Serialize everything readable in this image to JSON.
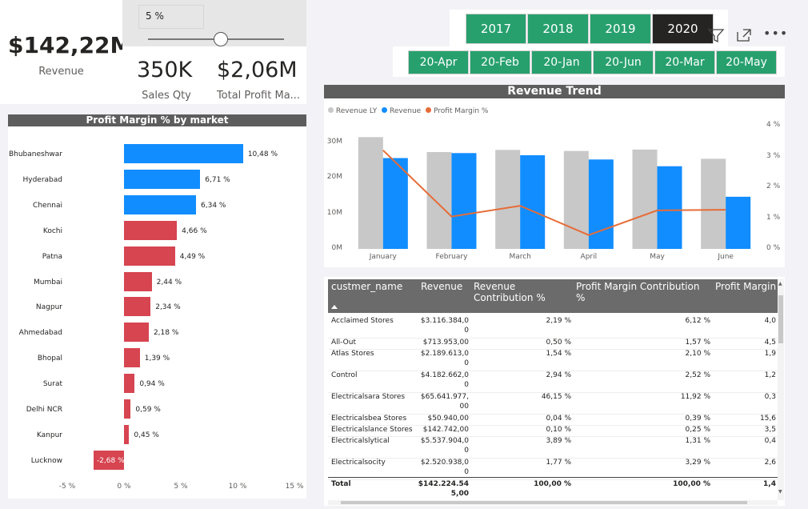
{
  "kpi": {
    "revenue_value": "$142,22M",
    "revenue_label": "Revenue",
    "sales_qty_value": "350K",
    "sales_qty_label": "Sales Qty",
    "profit_value": "$2,06M",
    "profit_label": "Total Profit Ma..."
  },
  "slider": {
    "value_text": "5 %",
    "position": 0.46
  },
  "years": [
    "2017",
    "2018",
    "2019",
    "2020"
  ],
  "selected_year": "2020",
  "months": [
    "20-Apr",
    "20-Feb",
    "20-Jan",
    "20-Jun",
    "20-Mar",
    "20-May"
  ],
  "profit_chart": {
    "title": "Profit Margin % by market",
    "colors": {
      "positive": "#118dff",
      "negative": "#d64550"
    },
    "chart_data": {
      "type": "bar",
      "orientation": "horizontal",
      "categories": [
        "Bhubaneshwar",
        "Hyderabad",
        "Chennai",
        "Kochi",
        "Patna",
        "Mumbai",
        "Nagpur",
        "Ahmedabad",
        "Bhopal",
        "Surat",
        "Delhi NCR",
        "Kanpur",
        "Lucknow"
      ],
      "values": [
        10.48,
        6.71,
        6.34,
        4.66,
        4.49,
        2.44,
        2.34,
        2.18,
        1.39,
        0.94,
        0.59,
        0.45,
        -2.68
      ],
      "value_labels": [
        "10,48 %",
        "6,71 %",
        "6,34 %",
        "4,66 %",
        "4,49 %",
        "2,44 %",
        "2,34 %",
        "2,18 %",
        "1,39 %",
        "0,94 %",
        "0,59 %",
        "0,45 %",
        "-2,68 %"
      ],
      "highlight_count": 3,
      "xlim": [
        -5,
        15
      ],
      "xticks": [
        "-5 %",
        "0 %",
        "5 %",
        "10 %",
        "15 %"
      ]
    }
  },
  "trend_chart": {
    "title": "Revenue Trend",
    "legend": [
      "Revenue LY",
      "Revenue",
      "Profit Margin %"
    ],
    "colors": {
      "revenue_ly": "#c8c8c8",
      "revenue": "#118dff",
      "margin": "#e66c37"
    },
    "chart_data": {
      "type": "bar",
      "categories": [
        "January",
        "February",
        "March",
        "April",
        "May",
        "June"
      ],
      "series": [
        {
          "name": "Revenue LY",
          "values": [
            31.5,
            27.3,
            27.9,
            27.6,
            28.0,
            25.4
          ]
        },
        {
          "name": "Revenue",
          "values": [
            25.6,
            27.0,
            26.4,
            25.2,
            23.3,
            14.7
          ]
        },
        {
          "name": "Profit Margin %",
          "values": [
            3.2,
            1.05,
            1.4,
            0.45,
            1.25,
            1.27
          ]
        }
      ],
      "ylim": [
        0,
        35
      ],
      "y2lim": [
        0,
        4
      ],
      "yticks": [
        "0M",
        "10M",
        "20M",
        "30M"
      ],
      "y2ticks": [
        "0 %",
        "1 %",
        "2 %",
        "3 %",
        "4 %"
      ]
    }
  },
  "table": {
    "headers": [
      "custmer_name",
      "Revenue",
      "Revenue Contribution %",
      "Profit Margin Contribution %",
      "Profit Margin"
    ],
    "rows": [
      [
        "Acclaimed Stores",
        "$3.116.384,0\n0",
        "2,19 %",
        "6,12 %",
        "4,0"
      ],
      [
        "All-Out",
        "$713.953,00",
        "0,50 %",
        "1,57 %",
        "4,5"
      ],
      [
        "Atlas Stores",
        "$2.189.613,0\n0",
        "1,54 %",
        "2,10 %",
        "1,9"
      ],
      [
        "Control",
        "$4.182.662,0\n0",
        "2,94 %",
        "2,52 %",
        "1,2"
      ],
      [
        "Electricalsara Stores",
        "$65.641.977,\n00",
        "46,15 %",
        "11,92 %",
        "0,3"
      ],
      [
        "Electricalsbea Stores",
        "$50.940,00",
        "0,04 %",
        "0,39 %",
        "15,6"
      ],
      [
        "Electricalslance Stores",
        "$142.742,00",
        "0,10 %",
        "0,25 %",
        "3,5"
      ],
      [
        "Electricalslytical",
        "$5.537.904,0\n0",
        "3,89 %",
        "1,31 %",
        "0,4"
      ],
      [
        "Electricalsocity",
        "$2.520.938,0\n0",
        "1,77 %",
        "3,29 %",
        "2,6"
      ]
    ],
    "total": [
      "Total",
      "$142.224.54\n5,00",
      "100,00 %",
      "100,00 %",
      "1,4"
    ]
  }
}
